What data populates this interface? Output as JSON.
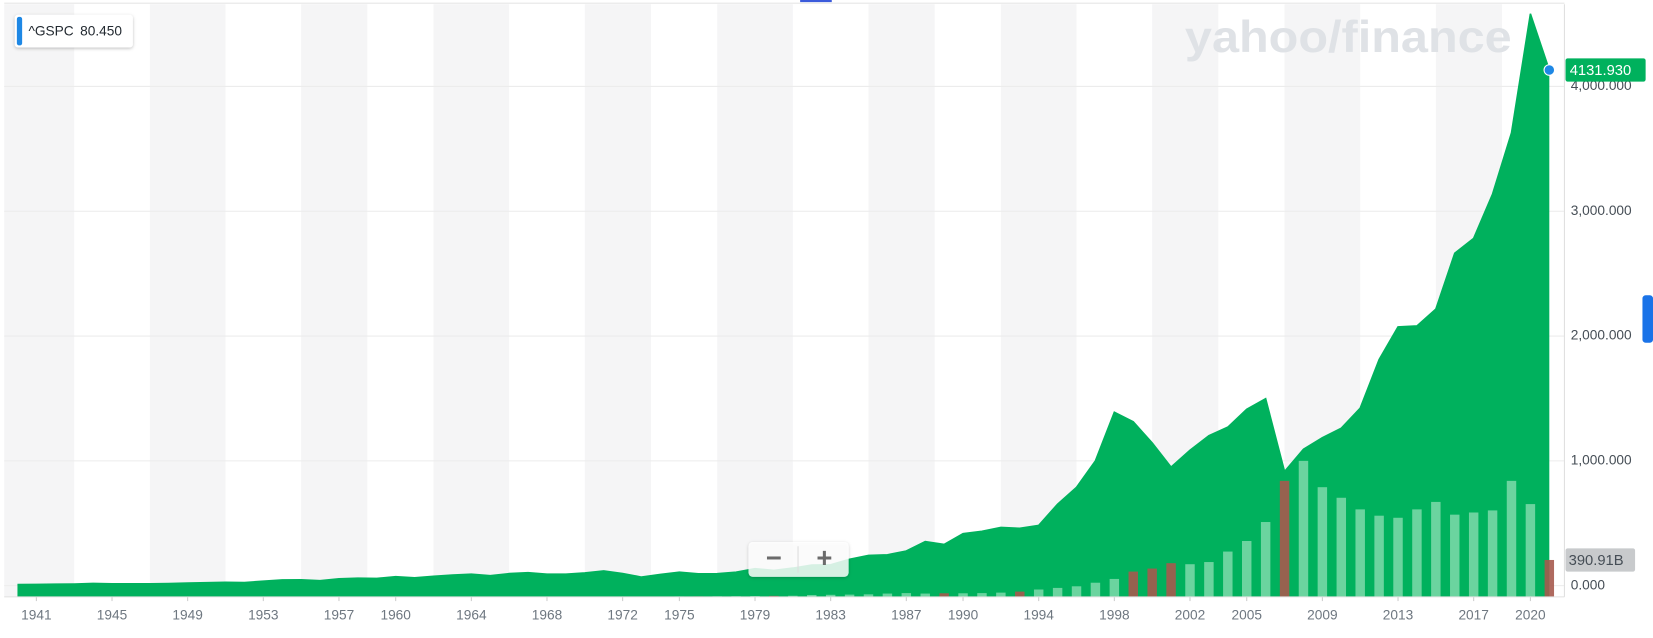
{
  "chart_data": {
    "type": "area",
    "watermark": "yahoo/finance",
    "legend_value": "80.450",
    "controls": [
      "−",
      "+"
    ],
    "grid": true,
    "x": [
      1940,
      1941,
      1942,
      1943,
      1944,
      1945,
      1946,
      1947,
      1948,
      1949,
      1950,
      1951,
      1952,
      1953,
      1954,
      1955,
      1956,
      1957,
      1958,
      1959,
      1960,
      1961,
      1962,
      1963,
      1964,
      1965,
      1966,
      1967,
      1968,
      1969,
      1970,
      1971,
      1972,
      1973,
      1974,
      1975,
      1976,
      1977,
      1978,
      1979,
      1980,
      1981,
      1982,
      1983,
      1984,
      1985,
      1986,
      1987,
      1988,
      1989,
      1990,
      1991,
      1992,
      1993,
      1994,
      1995,
      1996,
      1997,
      1998,
      1999,
      2000,
      2001,
      2002,
      2003,
      2004,
      2005,
      2006,
      2007,
      2008,
      2009,
      2010,
      2011,
      2012,
      2013,
      2014,
      2015,
      2016,
      2017,
      2018,
      2019,
      2020,
      2021
    ],
    "xlim": [
      1939.3,
      2021.8
    ],
    "xticks": [
      1941,
      1945,
      1949,
      1953,
      1957,
      1960,
      1964,
      1968,
      1972,
      1975,
      1979,
      1983,
      1987,
      1990,
      1994,
      1998,
      2002,
      2005,
      2009,
      2013,
      2017,
      2020
    ],
    "ylim": [
      -90,
      4659
    ],
    "yticks": [
      {
        "value": 0,
        "label": "0.000"
      },
      {
        "value": 1000,
        "label": "1,000.000"
      },
      {
        "value": 2000,
        "label": "2,000.000"
      },
      {
        "value": 3000,
        "label": "3,000.000"
      },
      {
        "value": 4000,
        "label": "4,000.000"
      }
    ],
    "y2lim": [
      0,
      6279
    ],
    "series": [
      {
        "name": "^GSPC",
        "color": "#00b15d",
        "marker_color": "#1e88e5",
        "last_label": "4131.930",
        "values": [
          8.69,
          9.77,
          11.67,
          13.28,
          17.36,
          15.3,
          15.3,
          15.2,
          16.76,
          20.41,
          23.77,
          26.57,
          24.81,
          35.98,
          45.48,
          46.67,
          39.99,
          55.21,
          59.89,
          58.11,
          71.55,
          63.1,
          75.02,
          84.75,
          92.43,
          80.33,
          96.47,
          103.86,
          92.06,
          92.15,
          102.09,
          118.05,
          97.55,
          68.56,
          90.19,
          107.46,
          95.1,
          96.11,
          107.94,
          135.76,
          122.55,
          140.64,
          164.93,
          167.24,
          211.28,
          242.17,
          247.08,
          277.72,
          353.4,
          330.22,
          417.09,
          435.71,
          466.45,
          459.27,
          483,
          653,
          788,
          1000,
          1390,
          1313,
          1144,
          950,
          1085,
          1202,
          1270,
          1413,
          1498,
          915,
          1093,
          1186,
          1262,
          1422,
          1811,
          2073,
          2081,
          2216,
          2664,
          2783,
          3138,
          3628,
          4583,
          4131.93
        ]
      },
      {
        "type": "bar",
        "axis": "y2",
        "color": "#8fe0b6",
        "down_color": "#a65a4e",
        "last_label": "390.91B",
        "values": [
          0,
          0,
          0,
          0,
          0,
          0,
          0,
          0,
          0,
          0,
          0.5,
          0.5,
          0.4,
          0.4,
          0.6,
          0.8,
          0.7,
          0.7,
          0.8,
          0.9,
          0.8,
          1.0,
          1.0,
          1.2,
          1.2,
          1.5,
          1.9,
          2.5,
          2.9,
          2.8,
          2.9,
          3.8,
          4.1,
          4.0,
          3.5,
          4.6,
          5.3,
          6,
          7,
          8,
          11,
          12,
          20,
          22,
          24,
          27,
          35,
          40,
          35,
          38,
          38,
          40,
          45,
          56,
          78,
          95,
          112,
          150,
          190,
          268,
          300,
          357,
          346,
          369,
          480,
          592,
          793,
          1229,
          1441,
          1162,
          1050,
          927,
          860,
          838,
          927,
          1006,
          871,
          894,
          916,
          1229,
          983,
          390.91
        ]
      }
    ]
  }
}
